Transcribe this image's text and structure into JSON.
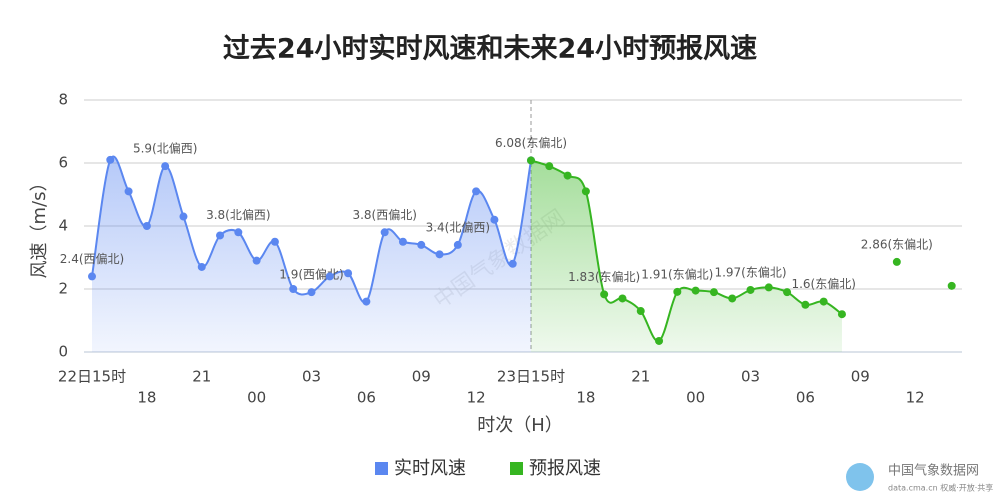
{
  "chart_data": {
    "type": "line",
    "title": "过去24小时实时风速和未来24小时预报风速",
    "y_label": "风速（m/s）",
    "x_label": "时次（H）",
    "categories": [
      "22日15时",
      null,
      null,
      "18",
      null,
      null,
      "21",
      null,
      null,
      "00",
      null,
      null,
      "03",
      null,
      null,
      "06",
      null,
      null,
      "09",
      null,
      null,
      "12",
      null,
      null,
      "23日15时",
      null,
      null,
      "18",
      null,
      null,
      "21",
      null,
      null,
      "00",
      null,
      null,
      "03",
      null,
      null,
      "06",
      null,
      null,
      "09",
      null,
      null,
      "12",
      null,
      null
    ],
    "ylim": [
      0,
      8
    ],
    "yticks": [
      0,
      2,
      4,
      6,
      8
    ],
    "grid": true,
    "series": [
      {
        "name": "实时风速",
        "color": "#5b87f0",
        "values": [
          2.4,
          6.1,
          5.1,
          4.0,
          5.9,
          4.3,
          2.7,
          3.7,
          3.8,
          2.9,
          3.5,
          2.0,
          1.9,
          2.4,
          2.5,
          1.6,
          3.8,
          3.5,
          3.4,
          3.1,
          3.4,
          5.1,
          4.2,
          2.8,
          6.08,
          null,
          null,
          null,
          null,
          null,
          null,
          null,
          null,
          null,
          null,
          null,
          null,
          null,
          null,
          null,
          null,
          null,
          null,
          null,
          null,
          null,
          null,
          null
        ],
        "value_labels": [
          "2.4(西偏北)",
          null,
          null,
          null,
          "5.9(北偏西)",
          null,
          null,
          null,
          "3.8(北偏西)",
          null,
          null,
          null,
          "1.9(西偏北)",
          null,
          null,
          null,
          "3.8(西偏北)",
          null,
          null,
          null,
          "3.4(北偏西)",
          null,
          null,
          null,
          null,
          null,
          null,
          null,
          null,
          null,
          null,
          null,
          null,
          null,
          null,
          null,
          null,
          null,
          null,
          null,
          null,
          null,
          null,
          null,
          null,
          null,
          null,
          null
        ]
      },
      {
        "name": "预报风速",
        "color": "#36b521",
        "values": [
          null,
          null,
          null,
          null,
          null,
          null,
          null,
          null,
          null,
          null,
          null,
          null,
          null,
          null,
          null,
          null,
          null,
          null,
          null,
          null,
          null,
          null,
          null,
          null,
          6.08,
          5.9,
          5.6,
          5.1,
          1.83,
          1.7,
          1.3,
          0.35,
          1.91,
          1.95,
          1.9,
          1.7,
          1.97,
          2.05,
          1.9,
          1.5,
          1.6,
          1.2,
          null,
          null,
          2.86,
          null,
          null,
          2.1
        ],
        "value_labels": [
          null,
          null,
          null,
          null,
          null,
          null,
          null,
          null,
          null,
          null,
          null,
          null,
          null,
          null,
          null,
          null,
          null,
          null,
          null,
          null,
          null,
          null,
          null,
          null,
          "6.08(东偏北)",
          null,
          null,
          null,
          "1.83(东偏北)",
          null,
          null,
          null,
          "1.91(东偏北)",
          null,
          null,
          null,
          "1.97(东偏北)",
          null,
          null,
          null,
          "1.6(东偏北)",
          null,
          null,
          null,
          "2.86(东偏北)",
          null,
          null,
          null
        ]
      }
    ]
  },
  "watermark": "中国气象数据网",
  "logo": {
    "name": "中国气象数据网",
    "tagline": "data.cma.cn 权威·开放·共享"
  }
}
